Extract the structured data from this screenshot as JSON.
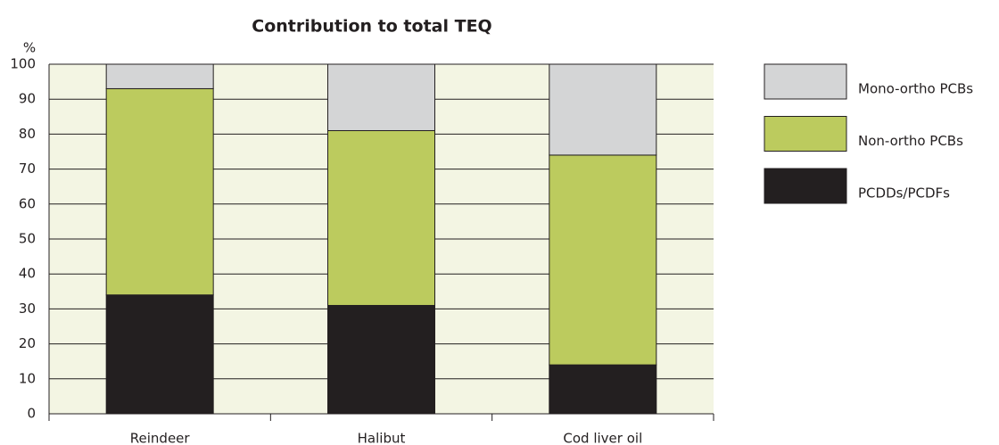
{
  "chart_data": {
    "type": "stacked_bar",
    "title": "Contribution to total TEQ",
    "y_label": "%",
    "categories": [
      "Reindeer",
      "Halibut",
      "Cod liver oil"
    ],
    "series": [
      {
        "name": "PCDDs/PCDFs",
        "color": "#231f20",
        "values": [
          34,
          31,
          14
        ]
      },
      {
        "name": "Non-ortho PCBs",
        "color": "#bccb5e",
        "values": [
          59,
          50,
          60
        ]
      },
      {
        "name": "Mono-ortho PCBs",
        "color": "#d4d5d6",
        "values": [
          7,
          19,
          26
        ]
      }
    ],
    "ylim": [
      0,
      100
    ],
    "yticks": [
      0,
      10,
      20,
      30,
      40,
      50,
      60,
      70,
      80,
      90,
      100
    ],
    "grid": true,
    "legend": "right"
  }
}
